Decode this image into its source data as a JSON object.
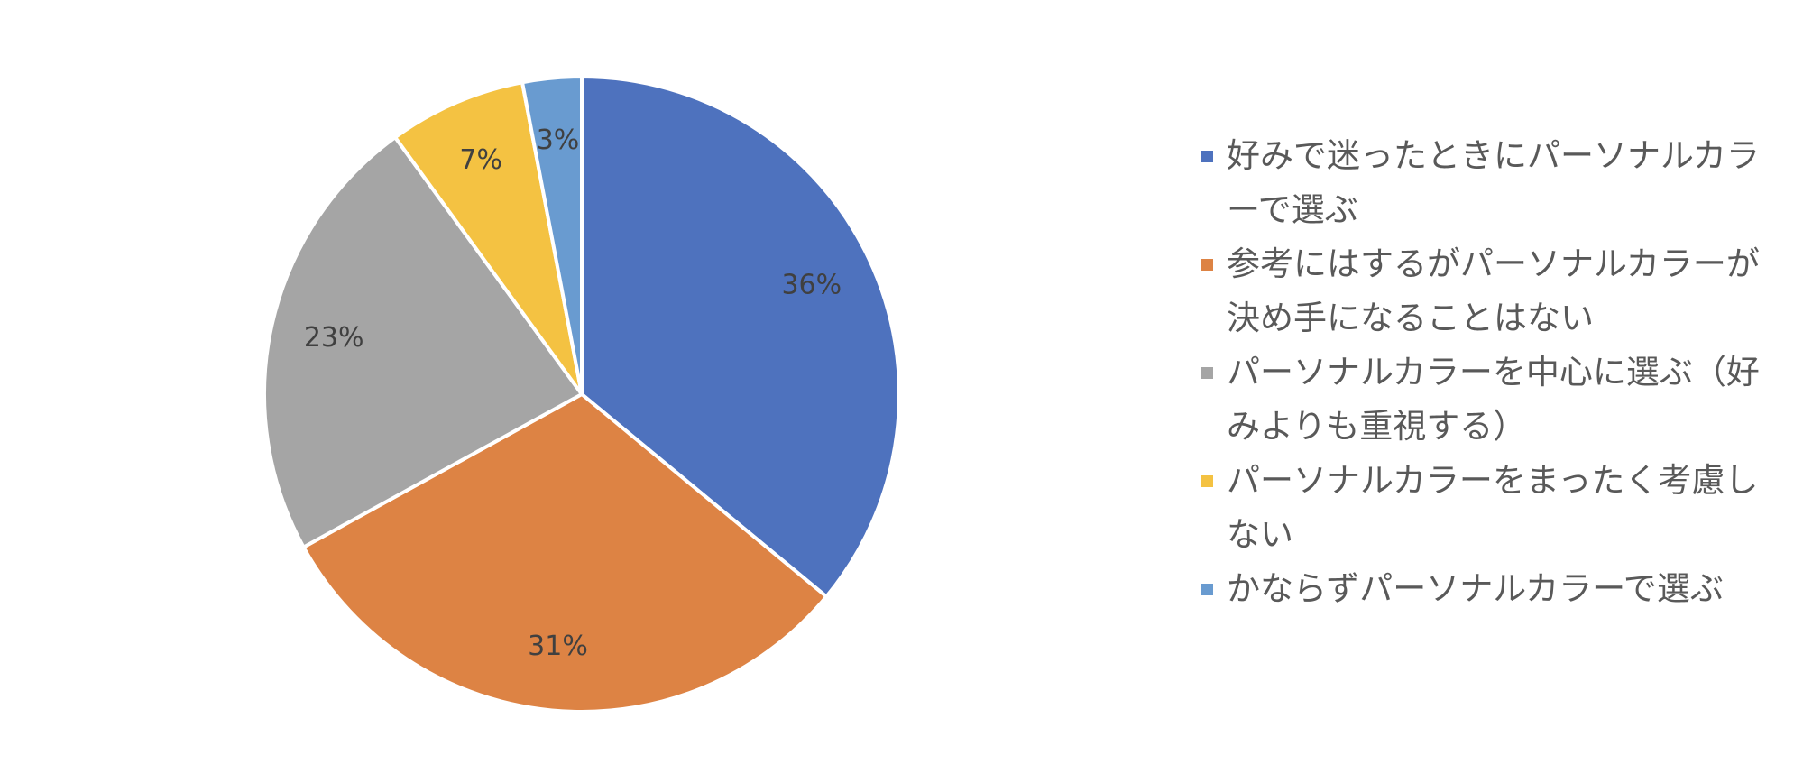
{
  "chart_data": {
    "type": "pie",
    "categories": [
      "好みで迷ったときにパーソナルカラーで選ぶ",
      "参考にはするがパーソナルカラーが決め手になることはない",
      "パーソナルカラーを中心に選ぶ（好みよりも重視する）",
      "パーソナルカラーをまったく考慮しない",
      "かならずパーソナルカラーで選ぶ"
    ],
    "values": [
      36,
      31,
      23,
      7,
      3
    ],
    "value_labels": [
      "36%",
      "31%",
      "23%",
      "7%",
      "3%"
    ],
    "colors": [
      "#4e72be",
      "#dd8344",
      "#a5a5a5",
      "#f4c242",
      "#699bd0"
    ],
    "legend": "right"
  }
}
